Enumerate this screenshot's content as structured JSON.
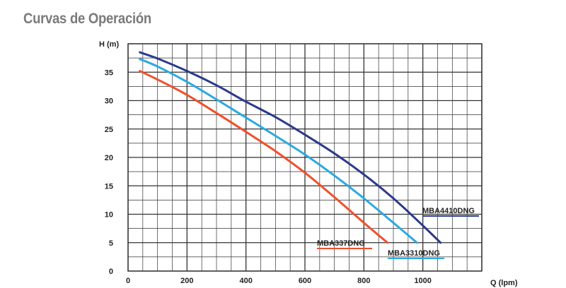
{
  "page": {
    "title": "Curvas de Operación"
  },
  "colors": {
    "grid": "#333333",
    "background": "#ffffff",
    "title": "#7a7a7a"
  },
  "chart_data": {
    "type": "line",
    "title": "",
    "xlabel": "Q (lpm)",
    "ylabel": "H (m)",
    "xlim": [
      0,
      1200
    ],
    "ylim": [
      0,
      40
    ],
    "xticks": [
      0,
      200,
      400,
      600,
      800,
      1000
    ],
    "xtick_labels": [
      "0",
      "200",
      "400",
      "600",
      "800",
      "1000"
    ],
    "yticks": [
      0,
      5,
      10,
      15,
      20,
      25,
      30,
      35
    ],
    "ytick_labels": [
      "0",
      "5",
      "10",
      "15",
      "20",
      "25",
      "30",
      "35"
    ],
    "grid": true,
    "legend": "none (series labelled inline)",
    "series": [
      {
        "name": "MBA4410DNG",
        "color": "#2b3a8c",
        "x": [
          40,
          100,
          200,
          300,
          400,
          500,
          600,
          700,
          800,
          900,
          1000,
          1060
        ],
        "y": [
          38.5,
          37.4,
          35.2,
          32.7,
          29.8,
          27.1,
          24.0,
          20.7,
          17.0,
          12.8,
          8.0,
          5.0
        ]
      },
      {
        "name": "MBA3310DNG",
        "color": "#2aa9e0",
        "x": [
          40,
          100,
          200,
          300,
          400,
          500,
          600,
          700,
          800,
          900,
          980
        ],
        "y": [
          37.3,
          36.0,
          33.3,
          30.2,
          27.0,
          23.8,
          20.5,
          16.8,
          12.8,
          8.5,
          5.0
        ]
      },
      {
        "name": "MBA337DNG",
        "color": "#f0502a",
        "x": [
          40,
          100,
          200,
          300,
          400,
          500,
          600,
          700,
          800,
          880
        ],
        "y": [
          35.2,
          33.7,
          31.0,
          27.8,
          24.5,
          21.1,
          17.3,
          13.0,
          8.5,
          5.0
        ]
      }
    ]
  }
}
